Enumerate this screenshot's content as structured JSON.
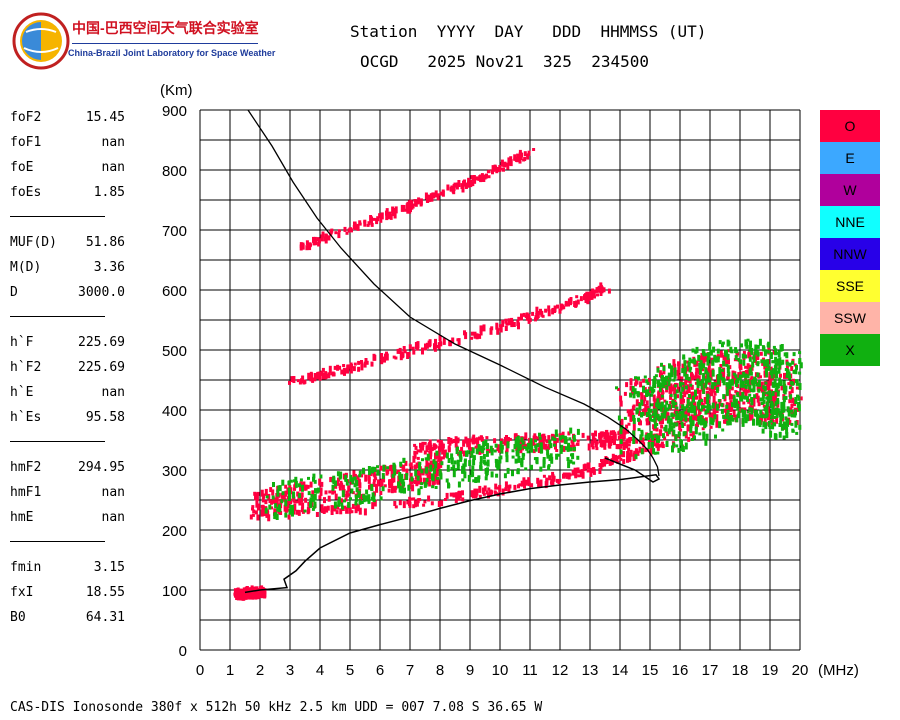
{
  "logo": {
    "name_zh": "中国-巴西空间天气联合实验室",
    "name_en": "China-Brazil Joint Laboratory for Space Weather"
  },
  "header": {
    "line1": "Station  YYYY  DAY   DDD  HHMMSS (UT)",
    "line2": "OCGD   2025 Nov21  325  234500"
  },
  "params": {
    "group1": [
      {
        "label": "foF2",
        "value": "15.45"
      },
      {
        "label": "foF1",
        "value": "nan"
      },
      {
        "label": "foE",
        "value": "nan"
      },
      {
        "label": "foEs",
        "value": "1.85"
      }
    ],
    "group2": [
      {
        "label": "MUF(D)",
        "value": "51.86"
      },
      {
        "label": "M(D)",
        "value": "3.36"
      },
      {
        "label": "D",
        "value": "3000.0"
      }
    ],
    "group3": [
      {
        "label": "h`F",
        "value": "225.69"
      },
      {
        "label": "h`F2",
        "value": "225.69"
      },
      {
        "label": "h`E",
        "value": "nan"
      },
      {
        "label": "h`Es",
        "value": "95.58"
      }
    ],
    "group4": [
      {
        "label": "hmF2",
        "value": "294.95"
      },
      {
        "label": "hmF1",
        "value": "nan"
      },
      {
        "label": "hmE",
        "value": "nan"
      }
    ],
    "group5": [
      {
        "label": "fmin",
        "value": "3.15"
      },
      {
        "label": "fxI",
        "value": "18.55"
      },
      {
        "label": "B0",
        "value": "64.31"
      }
    ]
  },
  "footer": "CAS-DIS Ionosonde 380f x 512h 50 kHz 2.5 km UDD = 007 7.08 S 36.65 W",
  "legend": [
    {
      "label": "O",
      "color": "#ff0040"
    },
    {
      "label": "E",
      "color": "#3ca8ff"
    },
    {
      "label": "W",
      "color": "#b0009c"
    },
    {
      "label": "NNE",
      "color": "#10ffff"
    },
    {
      "label": "NNW",
      "color": "#2800e8"
    },
    {
      "label": "SSE",
      "color": "#ffff30"
    },
    {
      "label": "SSW",
      "color": "#ffb4a8"
    },
    {
      "label": "X",
      "color": "#10b010"
    }
  ],
  "chart_data": {
    "type": "scatter",
    "xlabel": "(MHz)",
    "ylabel": "(Km)",
    "xlim": [
      0,
      20
    ],
    "ylim": [
      0,
      900
    ],
    "xticks": [
      0,
      1,
      2,
      3,
      4,
      5,
      6,
      7,
      8,
      9,
      10,
      11,
      12,
      13,
      14,
      15,
      16,
      17,
      18,
      19,
      20
    ],
    "yticks": [
      0,
      100,
      200,
      300,
      400,
      500,
      600,
      700,
      800,
      900
    ],
    "grid": true,
    "legend_position": "right",
    "traces": [
      {
        "mode": "O",
        "color": "#ff0040",
        "kind": "band",
        "points": [
          [
            1.7,
            240
          ],
          [
            3,
            255
          ],
          [
            5,
            272
          ],
          [
            7,
            292
          ],
          [
            8,
            300
          ]
        ],
        "spread": 22
      },
      {
        "mode": "O",
        "color": "#ff0040",
        "kind": "band",
        "points": [
          [
            1.9,
            225
          ],
          [
            5,
            235
          ],
          [
            8,
            250
          ],
          [
            10,
            268
          ],
          [
            12,
            288
          ],
          [
            13.5,
            310
          ],
          [
            14.6,
            330
          ]
        ],
        "spread": 7
      },
      {
        "mode": "O",
        "color": "#ff0040",
        "kind": "band",
        "points": [
          [
            7,
            330
          ],
          [
            9,
            340
          ],
          [
            11,
            345
          ],
          [
            13,
            348
          ],
          [
            14.3,
            352
          ]
        ],
        "spread": 14
      },
      {
        "mode": "O",
        "color": "#ff0040",
        "kind": "band",
        "points": [
          [
            3,
            448
          ],
          [
            5,
            470
          ],
          [
            7,
            500
          ],
          [
            9,
            525
          ],
          [
            11,
            555
          ],
          [
            12.5,
            580
          ],
          [
            13.5,
            605
          ]
        ],
        "spread": 7
      },
      {
        "mode": "O",
        "color": "#ff0040",
        "kind": "band",
        "points": [
          [
            3.3,
            672
          ],
          [
            4.5,
            695
          ],
          [
            6,
            720
          ],
          [
            7,
            742
          ],
          [
            8,
            760
          ],
          [
            9,
            780
          ],
          [
            10,
            805
          ],
          [
            11,
            830
          ]
        ],
        "spread": 5
      },
      {
        "mode": "O",
        "color": "#ff0040",
        "kind": "cloud",
        "points": [
          [
            14.5,
            380
          ],
          [
            15.5,
            400
          ],
          [
            16.5,
            430
          ],
          [
            17.5,
            440
          ],
          [
            18.5,
            440
          ],
          [
            19.5,
            420
          ]
        ],
        "spread": 60
      },
      {
        "mode": "O",
        "color": "#ff0040",
        "kind": "band",
        "points": [
          [
            1.2,
            93
          ],
          [
            2,
            97
          ]
        ],
        "spread": 6
      },
      {
        "mode": "X",
        "color": "#10b010",
        "kind": "cloud",
        "points": [
          [
            14.5,
            390
          ],
          [
            16,
            410
          ],
          [
            17.5,
            450
          ],
          [
            19,
            440
          ],
          [
            19.8,
            420
          ]
        ],
        "spread": 70
      },
      {
        "mode": "X",
        "color": "#10b010",
        "kind": "band",
        "points": [
          [
            2.2,
            250
          ],
          [
            5,
            268
          ],
          [
            8,
            300
          ],
          [
            10,
            320
          ],
          [
            12.5,
            340
          ]
        ],
        "spread": 30
      }
    ],
    "profile": [
      [
        15.3,
        290
      ],
      [
        15.25,
        305
      ],
      [
        15.1,
        320
      ],
      [
        14.9,
        335
      ],
      [
        14.6,
        350
      ],
      [
        14.2,
        368
      ],
      [
        13.6,
        388
      ],
      [
        12.8,
        410
      ],
      [
        11.5,
        438
      ],
      [
        10,
        475
      ],
      [
        8.5,
        510
      ],
      [
        7,
        555
      ],
      [
        5.8,
        610
      ],
      [
        4.7,
        670
      ],
      [
        3.9,
        720
      ],
      [
        3.1,
        780
      ],
      [
        2.4,
        840
      ],
      [
        1.6,
        900
      ]
    ],
    "trace_curve": [
      [
        1.5,
        96
      ],
      [
        2,
        100
      ],
      [
        2.9,
        104
      ],
      [
        2.8,
        118
      ],
      [
        3.2,
        132
      ],
      [
        3.5,
        148
      ],
      [
        4,
        170
      ],
      [
        5,
        195
      ],
      [
        6,
        209
      ],
      [
        7,
        222
      ],
      [
        8,
        236
      ],
      [
        9,
        249
      ],
      [
        10,
        260
      ],
      [
        11,
        269
      ],
      [
        12,
        275
      ],
      [
        13,
        280
      ],
      [
        14,
        284
      ],
      [
        15.2,
        292
      ],
      [
        15.3,
        285
      ],
      [
        15.1,
        280
      ],
      [
        14.5,
        300
      ],
      [
        13.5,
        320
      ]
    ]
  }
}
